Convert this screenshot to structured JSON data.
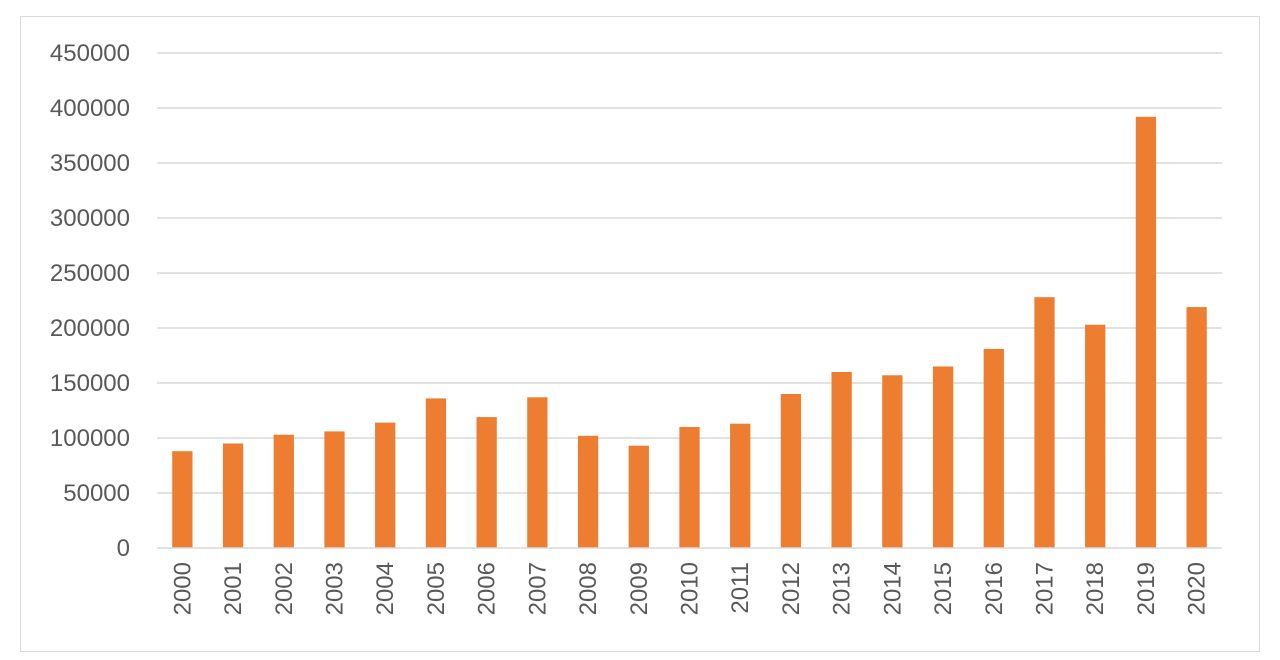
{
  "chart_data": {
    "type": "bar",
    "title": "",
    "xlabel": "",
    "ylabel": "",
    "categories": [
      "2000",
      "2001",
      "2002",
      "2003",
      "2004",
      "2005",
      "2006",
      "2007",
      "2008",
      "2009",
      "2010",
      "2011",
      "2012",
      "2013",
      "2014",
      "2015",
      "2016",
      "2017",
      "2018",
      "2019",
      "2020"
    ],
    "values": [
      88000,
      95000,
      103000,
      106000,
      114000,
      136000,
      119000,
      137000,
      102000,
      93000,
      110000,
      113000,
      140000,
      160000,
      157000,
      165000,
      181000,
      228000,
      203000,
      392000,
      219000
    ],
    "ylim": [
      0,
      450000
    ],
    "yticks": [
      "0",
      "50000",
      "100000",
      "150000",
      "200000",
      "250000",
      "300000",
      "350000",
      "400000",
      "450000"
    ],
    "grid": true,
    "legend": "none",
    "bar_color": "#ED7D31",
    "grid_color": "#d9d9d9",
    "text_color": "#595959"
  }
}
